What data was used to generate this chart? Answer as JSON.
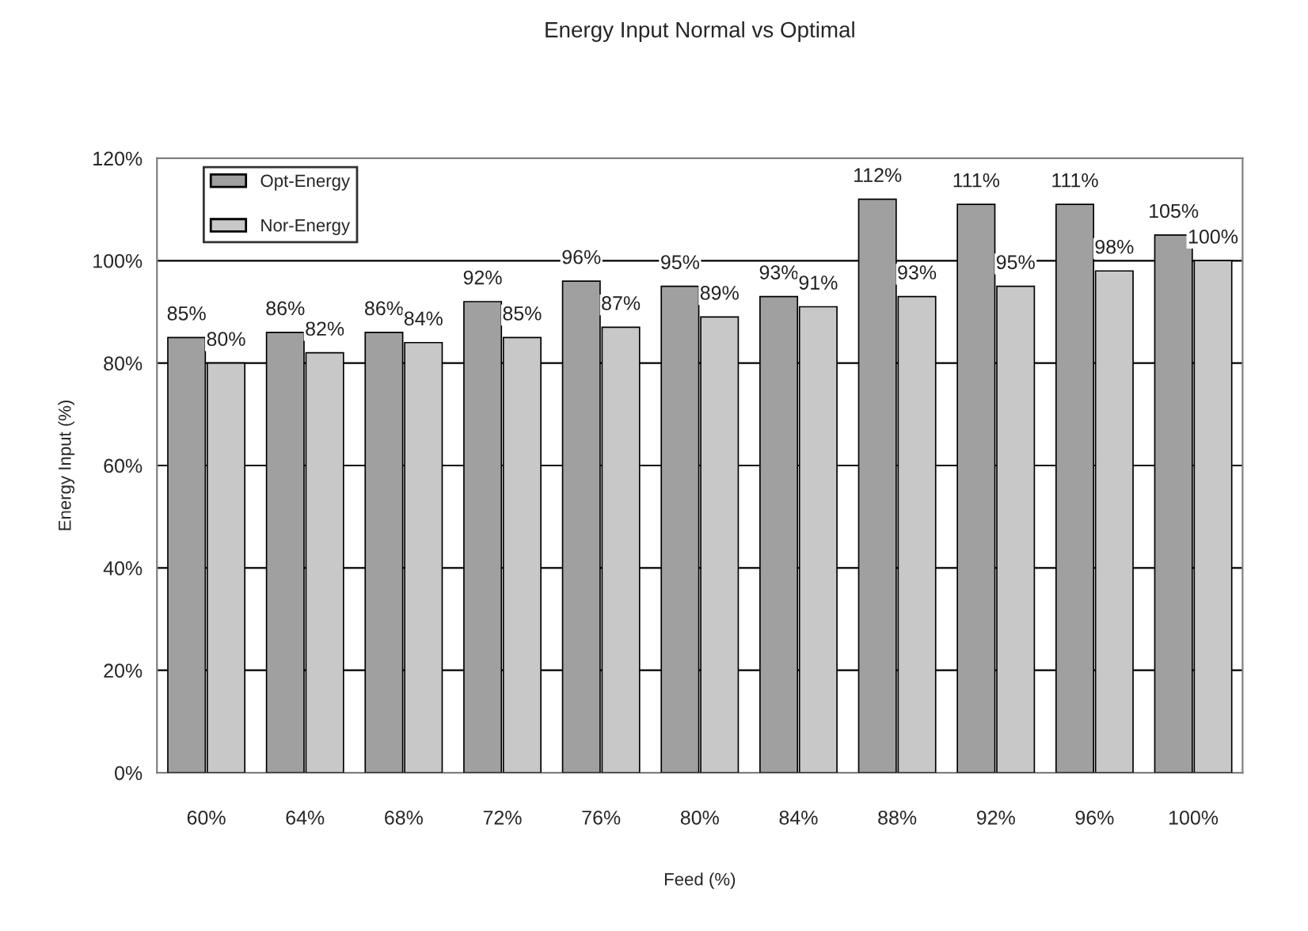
{
  "chart_data": {
    "type": "bar",
    "title": "Energy Input Normal vs Optimal",
    "xlabel": "Feed (%)",
    "ylabel": "Energy Input (%)",
    "categories": [
      "60%",
      "64%",
      "68%",
      "72%",
      "76%",
      "80%",
      "84%",
      "88%",
      "92%",
      "96%",
      "100%"
    ],
    "series": [
      {
        "name": "Opt-Energy",
        "color": "#a0a0a0",
        "values": [
          85,
          86,
          86,
          92,
          96,
          95,
          93,
          112,
          111,
          111,
          105
        ],
        "value_labels": [
          "85%",
          "86%",
          "86%",
          "92%",
          "96%",
          "95%",
          "93%",
          "112%",
          "111%",
          "111%",
          "105%"
        ]
      },
      {
        "name": "Nor-Energy",
        "color": "#c8c8c8",
        "values": [
          80,
          82,
          84,
          85,
          87,
          89,
          91,
          93,
          95,
          98,
          100
        ],
        "value_labels": [
          "80%",
          "82%",
          "84%",
          "85%",
          "87%",
          "89%",
          "91%",
          "93%",
          "95%",
          "98%",
          "100%"
        ]
      }
    ],
    "ylim": [
      0,
      120
    ],
    "yticks": [
      {
        "value": 0,
        "label": "0%"
      },
      {
        "value": 20,
        "label": "20%"
      },
      {
        "value": 40,
        "label": "40%"
      },
      {
        "value": 60,
        "label": "60%"
      },
      {
        "value": 80,
        "label": "80%"
      },
      {
        "value": 100,
        "label": "100%"
      },
      {
        "value": 120,
        "label": "120%"
      }
    ],
    "grid": "y",
    "legend": "top left"
  }
}
